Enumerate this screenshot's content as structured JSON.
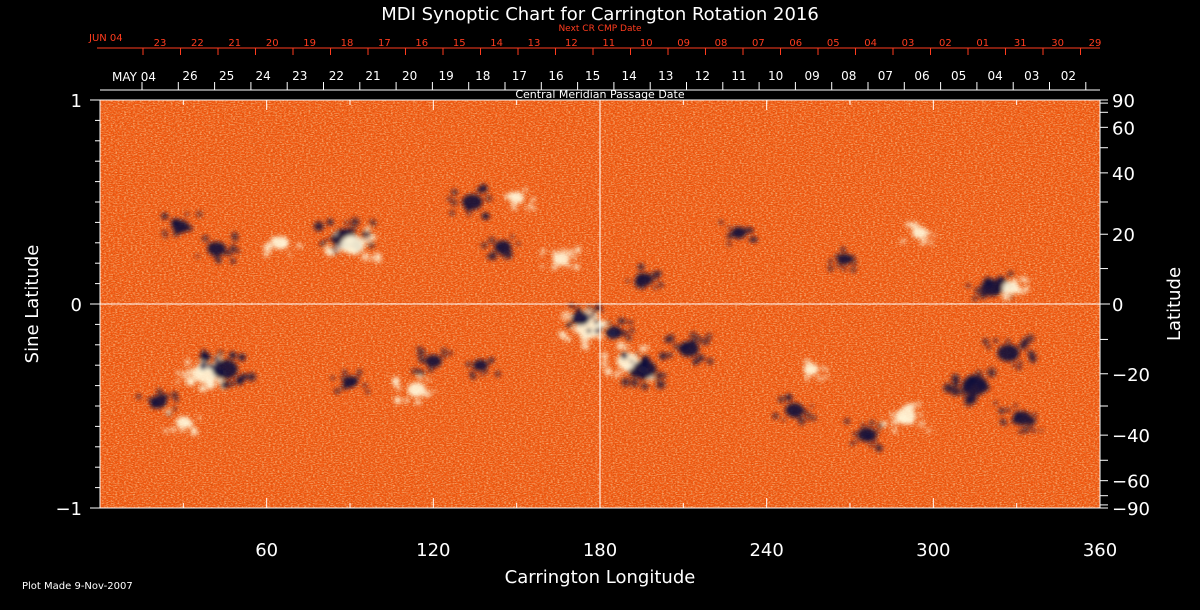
{
  "chart_data": {
    "type": "heatmap",
    "title": "MDI Synoptic Chart for Carrington Rotation 2016",
    "xlabel": "Carrington Longitude",
    "ylabel": "Sine Latitude",
    "y2label": "Latitude",
    "xlim": [
      0,
      360
    ],
    "ylim": [
      -1,
      1
    ],
    "x_ticks": [
      "60",
      "120",
      "180",
      "240",
      "300",
      "360"
    ],
    "y_ticks": [
      "1",
      "0",
      "−1"
    ],
    "lat_ticks": [
      {
        "value": 90,
        "label": "90"
      },
      {
        "value": 60,
        "label": "60"
      },
      {
        "value": 40,
        "label": "40"
      },
      {
        "value": 20,
        "label": "20"
      },
      {
        "value": 0,
        "label": "0"
      },
      {
        "value": -20,
        "label": "−20"
      },
      {
        "value": -40,
        "label": "−40"
      },
      {
        "value": -60,
        "label": "−60"
      },
      {
        "value": -90,
        "label": "−90"
      }
    ],
    "top_axis": {
      "label": "Central Meridian Passage Date",
      "start_label": "MAY 04",
      "day_labels": [
        "26",
        "25",
        "24",
        "23",
        "22",
        "21",
        "20",
        "19",
        "18",
        "17",
        "16",
        "15",
        "14",
        "13",
        "12",
        "11",
        "10",
        "09",
        "08",
        "07",
        "06",
        "05",
        "04",
        "03",
        "02"
      ]
    },
    "next_axis": {
      "label": "Next CR CMP Date",
      "start_label": "JUN 04",
      "day_labels": [
        "23",
        "22",
        "21",
        "20",
        "19",
        "18",
        "17",
        "16",
        "15",
        "14",
        "13",
        "12",
        "11",
        "10",
        "09",
        "08",
        "07",
        "06",
        "05",
        "04",
        "03",
        "02",
        "01",
        "31",
        "30",
        "29"
      ]
    },
    "regions": [
      {
        "lon": 29,
        "sinlat": 0.38,
        "polarity": "negative",
        "strength": 0.5
      },
      {
        "lon": 42,
        "sinlat": 0.27,
        "polarity": "negative",
        "strength": 0.6
      },
      {
        "lon": 88,
        "sinlat": 0.32,
        "polarity": "negative",
        "strength": 1.0
      },
      {
        "lon": 91,
        "sinlat": 0.29,
        "polarity": "positive",
        "strength": 0.9
      },
      {
        "lon": 65,
        "sinlat": 0.3,
        "polarity": "positive",
        "strength": 0.5
      },
      {
        "lon": 134,
        "sinlat": 0.5,
        "polarity": "negative",
        "strength": 0.7
      },
      {
        "lon": 145,
        "sinlat": 0.28,
        "polarity": "negative",
        "strength": 0.5
      },
      {
        "lon": 150,
        "sinlat": 0.52,
        "polarity": "positive",
        "strength": 0.4
      },
      {
        "lon": 166,
        "sinlat": 0.22,
        "polarity": "positive",
        "strength": 0.5
      },
      {
        "lon": 196,
        "sinlat": 0.12,
        "polarity": "negative",
        "strength": 0.5
      },
      {
        "lon": 230,
        "sinlat": 0.35,
        "polarity": "negative",
        "strength": 0.4
      },
      {
        "lon": 268,
        "sinlat": 0.22,
        "polarity": "negative",
        "strength": 0.4
      },
      {
        "lon": 295,
        "sinlat": 0.35,
        "polarity": "positive",
        "strength": 0.4
      },
      {
        "lon": 321,
        "sinlat": 0.08,
        "polarity": "negative",
        "strength": 0.8
      },
      {
        "lon": 328,
        "sinlat": 0.08,
        "polarity": "positive",
        "strength": 0.5
      },
      {
        "lon": 38,
        "sinlat": -0.34,
        "polarity": "positive",
        "strength": 1.0
      },
      {
        "lon": 45,
        "sinlat": -0.32,
        "polarity": "negative",
        "strength": 1.0
      },
      {
        "lon": 21,
        "sinlat": -0.48,
        "polarity": "negative",
        "strength": 0.5
      },
      {
        "lon": 30,
        "sinlat": -0.58,
        "polarity": "positive",
        "strength": 0.4
      },
      {
        "lon": 90,
        "sinlat": -0.38,
        "polarity": "negative",
        "strength": 0.4
      },
      {
        "lon": 114,
        "sinlat": -0.42,
        "polarity": "positive",
        "strength": 0.6
      },
      {
        "lon": 120,
        "sinlat": -0.28,
        "polarity": "negative",
        "strength": 0.5
      },
      {
        "lon": 137,
        "sinlat": -0.3,
        "polarity": "negative",
        "strength": 0.4
      },
      {
        "lon": 176,
        "sinlat": -0.12,
        "polarity": "positive",
        "strength": 1.0
      },
      {
        "lon": 173,
        "sinlat": -0.07,
        "polarity": "negative",
        "strength": 0.6
      },
      {
        "lon": 185,
        "sinlat": -0.14,
        "polarity": "negative",
        "strength": 0.5
      },
      {
        "lon": 190,
        "sinlat": -0.28,
        "polarity": "positive",
        "strength": 0.8
      },
      {
        "lon": 196,
        "sinlat": -0.32,
        "polarity": "negative",
        "strength": 0.9
      },
      {
        "lon": 212,
        "sinlat": -0.22,
        "polarity": "negative",
        "strength": 0.7
      },
      {
        "lon": 250,
        "sinlat": -0.52,
        "polarity": "negative",
        "strength": 0.6
      },
      {
        "lon": 256,
        "sinlat": -0.32,
        "polarity": "positive",
        "strength": 0.4
      },
      {
        "lon": 276,
        "sinlat": -0.64,
        "polarity": "negative",
        "strength": 0.6
      },
      {
        "lon": 290,
        "sinlat": -0.55,
        "polarity": "positive",
        "strength": 0.7
      },
      {
        "lon": 315,
        "sinlat": -0.4,
        "polarity": "negative",
        "strength": 1.0
      },
      {
        "lon": 327,
        "sinlat": -0.24,
        "polarity": "negative",
        "strength": 0.8
      },
      {
        "lon": 332,
        "sinlat": -0.56,
        "polarity": "negative",
        "strength": 0.6
      }
    ]
  },
  "colors": {
    "background": "#000000",
    "field_base": "#f25a12",
    "negative": "#0c0c3c",
    "positive": "#fff8dc",
    "next_axis": "#ff3c1e"
  },
  "footer": {
    "plot_made": "Plot Made  9-Nov-2007"
  }
}
